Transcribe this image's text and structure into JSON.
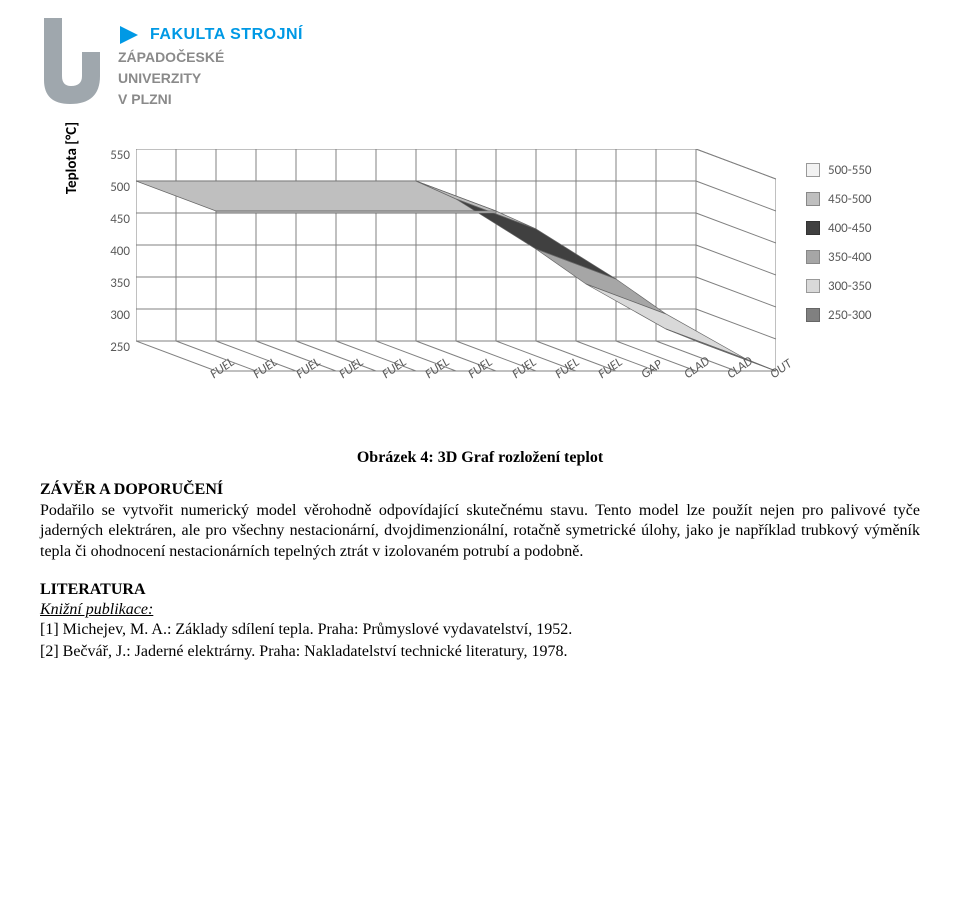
{
  "header": {
    "faculty": "FAKULTA STROJNÍ",
    "uni1": "ZÁPADOČESKÉ",
    "uni2": "UNIVERZITY",
    "uni3": "V PLZNI",
    "logo_u_fill": "#9fa7ad",
    "logo_play_fill": "#0099e5",
    "logo_text_blue": "#0099e5",
    "logo_text_grey": "#8a8a8a"
  },
  "chart": {
    "type": "3d-surface",
    "ylabel": "Teplota [°C]",
    "y_ticks": [
      "550",
      "500",
      "450",
      "400",
      "350",
      "300",
      "250"
    ],
    "x_ticks": [
      "FUEL",
      "FUEL",
      "FUEL",
      "FUEL",
      "FUEL",
      "FUEL",
      "FUEL",
      "FUEL",
      "FUEL",
      "FUEL",
      "GAP",
      "CLAD",
      "CLAD",
      "OUT"
    ],
    "legend": [
      {
        "label": "500-550",
        "color": "#f2f2f2",
        "border": "#999999"
      },
      {
        "label": "450-500",
        "color": "#bfbfbf",
        "border": "#888888"
      },
      {
        "label": "400-450",
        "color": "#404040",
        "border": "#333333"
      },
      {
        "label": "350-400",
        "color": "#a6a6a6",
        "border": "#888888"
      },
      {
        "label": "300-350",
        "color": "#d9d9d9",
        "border": "#999999"
      },
      {
        "label": "250-300",
        "color": "#808080",
        "border": "#666666"
      }
    ],
    "colors": {
      "frame": "#808080",
      "grid": "#808080",
      "band_500_550": "#f2f2f2",
      "band_450_500": "#bfbfbf",
      "band_400_450": "#404040",
      "band_350_400": "#a6a6a6",
      "band_300_350": "#d9d9d9",
      "band_250_300": "#808080"
    },
    "ylim": [
      250,
      550
    ],
    "label_fontsize": 15,
    "tick_fontsize": 13,
    "tick_fontfamily": "Calibri",
    "background_color": "#ffffff"
  },
  "caption": "Obrázek 4: 3D Graf rozložení teplot",
  "section1": {
    "title": "ZÁVĚR A DOPORUČENÍ",
    "para": "Podařilo se vytvořit numerický model věrohodně odpovídající skutečnému stavu. Tento model lze použít nejen pro palivové tyče jaderných elektráren, ale pro všechny nestacionární, dvojdimenzionální, rotačně symetrické úlohy, jako je například trubkový výměník tepla či ohodnocení nestacionárních tepelných ztrát v izolovaném potrubí a podobně."
  },
  "section2": {
    "title": "LITERATURA",
    "category": "Knižní publikace:",
    "ref1": "[1] Michejev, M. A.: Základy sdílení tepla. Praha: Průmyslové vydavatelství, 1952.",
    "ref2": "[2] Bečvář, J.: Jaderné elektrárny. Praha: Nakladatelství technické literatury, 1978."
  }
}
